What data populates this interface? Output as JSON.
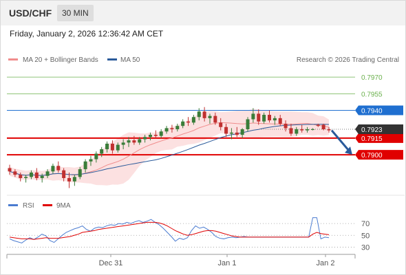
{
  "header": {
    "symbol": "USD/CHF",
    "timeframe": "30 MIN"
  },
  "timestamp": "Friday, January 2, 2026 12:36:42 AM CET",
  "legend": [
    {
      "label": "MA 20 + Bollinger Bands",
      "color": "#f08c8c"
    },
    {
      "label": "MA 50",
      "color": "#2a5a9a"
    }
  ],
  "credit": "Research © 2026 Trading Central",
  "chart_data": [
    {
      "type": "candlestick",
      "title": "USD/CHF",
      "timeframe": "30 MIN",
      "ylim": [
        0.7866,
        0.798
      ],
      "x_labels": [
        "Dec 31",
        "Jan 1",
        "Jan 2"
      ],
      "last_price": "0.7923",
      "levels": [
        {
          "value": "0.7970",
          "kind": "target",
          "color": "#6ab04c"
        },
        {
          "value": "0.7955",
          "kind": "target",
          "color": "#6ab04c"
        },
        {
          "value": "0.7940",
          "kind": "resistance",
          "color": "#1f6fd0"
        },
        {
          "value": "0.7915",
          "kind": "pivot",
          "color": "#e00000"
        },
        {
          "value": "0.7900",
          "kind": "support",
          "color": "#e00000"
        }
      ],
      "forecast_arrow": {
        "from": 0.7922,
        "to": 0.79,
        "color": "#2a5a9a"
      },
      "candles": [
        [
          0.7888,
          0.7891,
          0.7882,
          0.7885
        ],
        [
          0.7885,
          0.7887,
          0.788,
          0.7882
        ],
        [
          0.7882,
          0.7884,
          0.7876,
          0.7879
        ],
        [
          0.7879,
          0.7882,
          0.7875,
          0.788
        ],
        [
          0.788,
          0.7886,
          0.7878,
          0.7884
        ],
        [
          0.7884,
          0.7888,
          0.7877,
          0.7879
        ],
        [
          0.7879,
          0.7883,
          0.7875,
          0.7881
        ],
        [
          0.7881,
          0.7887,
          0.7879,
          0.7885
        ],
        [
          0.7885,
          0.7892,
          0.7883,
          0.789
        ],
        [
          0.789,
          0.7894,
          0.7884,
          0.7886
        ],
        [
          0.7886,
          0.7888,
          0.7876,
          0.7879
        ],
        [
          0.7879,
          0.7884,
          0.787,
          0.7876
        ],
        [
          0.7876,
          0.7882,
          0.7872,
          0.788
        ],
        [
          0.788,
          0.7889,
          0.7878,
          0.7887
        ],
        [
          0.7887,
          0.7896,
          0.7884,
          0.7894
        ],
        [
          0.7894,
          0.7899,
          0.789,
          0.7896
        ],
        [
          0.7896,
          0.7903,
          0.7893,
          0.7901
        ],
        [
          0.7901,
          0.7907,
          0.7898,
          0.7905
        ],
        [
          0.7905,
          0.7912,
          0.7902,
          0.791
        ],
        [
          0.791,
          0.7913,
          0.7901,
          0.7904
        ],
        [
          0.7904,
          0.7911,
          0.7902,
          0.7909
        ],
        [
          0.7909,
          0.7914,
          0.7905,
          0.7911
        ],
        [
          0.7911,
          0.7916,
          0.7907,
          0.7913
        ],
        [
          0.7913,
          0.7917,
          0.7909,
          0.7911
        ],
        [
          0.7911,
          0.7916,
          0.7909,
          0.7914
        ],
        [
          0.7914,
          0.7918,
          0.7911,
          0.7916
        ],
        [
          0.7916,
          0.792,
          0.7913,
          0.7918
        ],
        [
          0.7918,
          0.7922,
          0.7915,
          0.7917
        ],
        [
          0.7917,
          0.7923,
          0.7915,
          0.7921
        ],
        [
          0.7921,
          0.7926,
          0.7919,
          0.7924
        ],
        [
          0.7924,
          0.7927,
          0.792,
          0.7923
        ],
        [
          0.7923,
          0.7928,
          0.7921,
          0.7926
        ],
        [
          0.7926,
          0.7932,
          0.7924,
          0.793
        ],
        [
          0.793,
          0.7934,
          0.7926,
          0.7929
        ],
        [
          0.7929,
          0.7936,
          0.7927,
          0.7934
        ],
        [
          0.7934,
          0.7942,
          0.7931,
          0.7939
        ],
        [
          0.7939,
          0.7943,
          0.793,
          0.7933
        ],
        [
          0.7933,
          0.7937,
          0.7928,
          0.7935
        ],
        [
          0.7935,
          0.7938,
          0.7927,
          0.7929
        ],
        [
          0.7929,
          0.7933,
          0.7922,
          0.7925
        ],
        [
          0.7925,
          0.7928,
          0.7916,
          0.7919
        ],
        [
          0.7919,
          0.7924,
          0.7914,
          0.792
        ],
        [
          0.792,
          0.7925,
          0.7916,
          0.7918
        ],
        [
          0.7918,
          0.7924,
          0.7915,
          0.7923
        ],
        [
          0.7923,
          0.7934,
          0.7921,
          0.7932
        ],
        [
          0.7932,
          0.7942,
          0.7929,
          0.7937
        ],
        [
          0.7937,
          0.7941,
          0.7927,
          0.793
        ],
        [
          0.793,
          0.7938,
          0.7928,
          0.7936
        ],
        [
          0.7936,
          0.794,
          0.7929,
          0.7931
        ],
        [
          0.7931,
          0.7935,
          0.7927,
          0.7933
        ],
        [
          0.7933,
          0.7936,
          0.7926,
          0.7928
        ],
        [
          0.7928,
          0.7931,
          0.7921,
          0.7924
        ],
        [
          0.7924,
          0.7928,
          0.7917,
          0.7919
        ],
        [
          0.7919,
          0.7925,
          0.7917,
          0.7923
        ],
        [
          0.7923,
          0.7927,
          0.792,
          0.7922
        ],
        [
          0.7922,
          0.7925,
          0.792,
          0.7923
        ],
        [
          0.7923,
          0.7924,
          0.7922,
          0.7923
        ],
        [
          0.7927,
          0.7928,
          0.7925,
          0.7926
        ],
        [
          0.7927,
          0.7928,
          0.7922,
          0.7923
        ],
        [
          0.7923,
          0.7925,
          0.792,
          0.7922
        ]
      ]
    },
    {
      "type": "line",
      "legend": [
        {
          "label": "RSI",
          "color": "#4a7bd0"
        },
        {
          "label": "9MA",
          "color": "#e00000"
        }
      ],
      "yticks": [
        "70",
        "50",
        "30"
      ],
      "ylim": [
        20,
        90
      ],
      "series": [
        {
          "name": "RSI",
          "values": [
            44,
            41,
            39,
            37,
            42,
            46,
            43,
            47,
            52,
            49,
            41,
            38,
            44,
            50,
            55,
            58,
            61,
            63,
            66,
            60,
            57,
            62,
            64,
            63,
            66,
            68,
            67,
            70,
            69,
            72,
            70,
            73,
            75,
            72,
            74,
            77,
            72,
            68,
            62,
            55,
            48,
            40,
            45,
            43,
            46,
            58,
            66,
            62,
            64,
            60,
            55,
            48,
            45,
            44,
            46,
            47,
            46,
            47,
            48,
            47,
            47,
            47,
            47,
            47,
            47,
            47,
            47,
            47,
            47,
            47,
            47,
            47,
            47,
            47,
            47,
            80,
            80,
            44,
            47,
            46
          ]
        },
        {
          "name": "9MA",
          "values": [
            47,
            46,
            45,
            44,
            44,
            44,
            43,
            44,
            45,
            46,
            45,
            45,
            45,
            46,
            47,
            48,
            50,
            52,
            55,
            56,
            57,
            58,
            60,
            61,
            62,
            63,
            64,
            65,
            66,
            67,
            68,
            69,
            70,
            71,
            72,
            72,
            72,
            71,
            69,
            66,
            62,
            58,
            55,
            52,
            50,
            51,
            53,
            55,
            57,
            58,
            58,
            57,
            55,
            53,
            51,
            49,
            48,
            47,
            47,
            47,
            47,
            47,
            47,
            47,
            47,
            47,
            47,
            47,
            47,
            47,
            47,
            47,
            47,
            47,
            47,
            52,
            55,
            53,
            52,
            51
          ]
        }
      ]
    }
  ]
}
